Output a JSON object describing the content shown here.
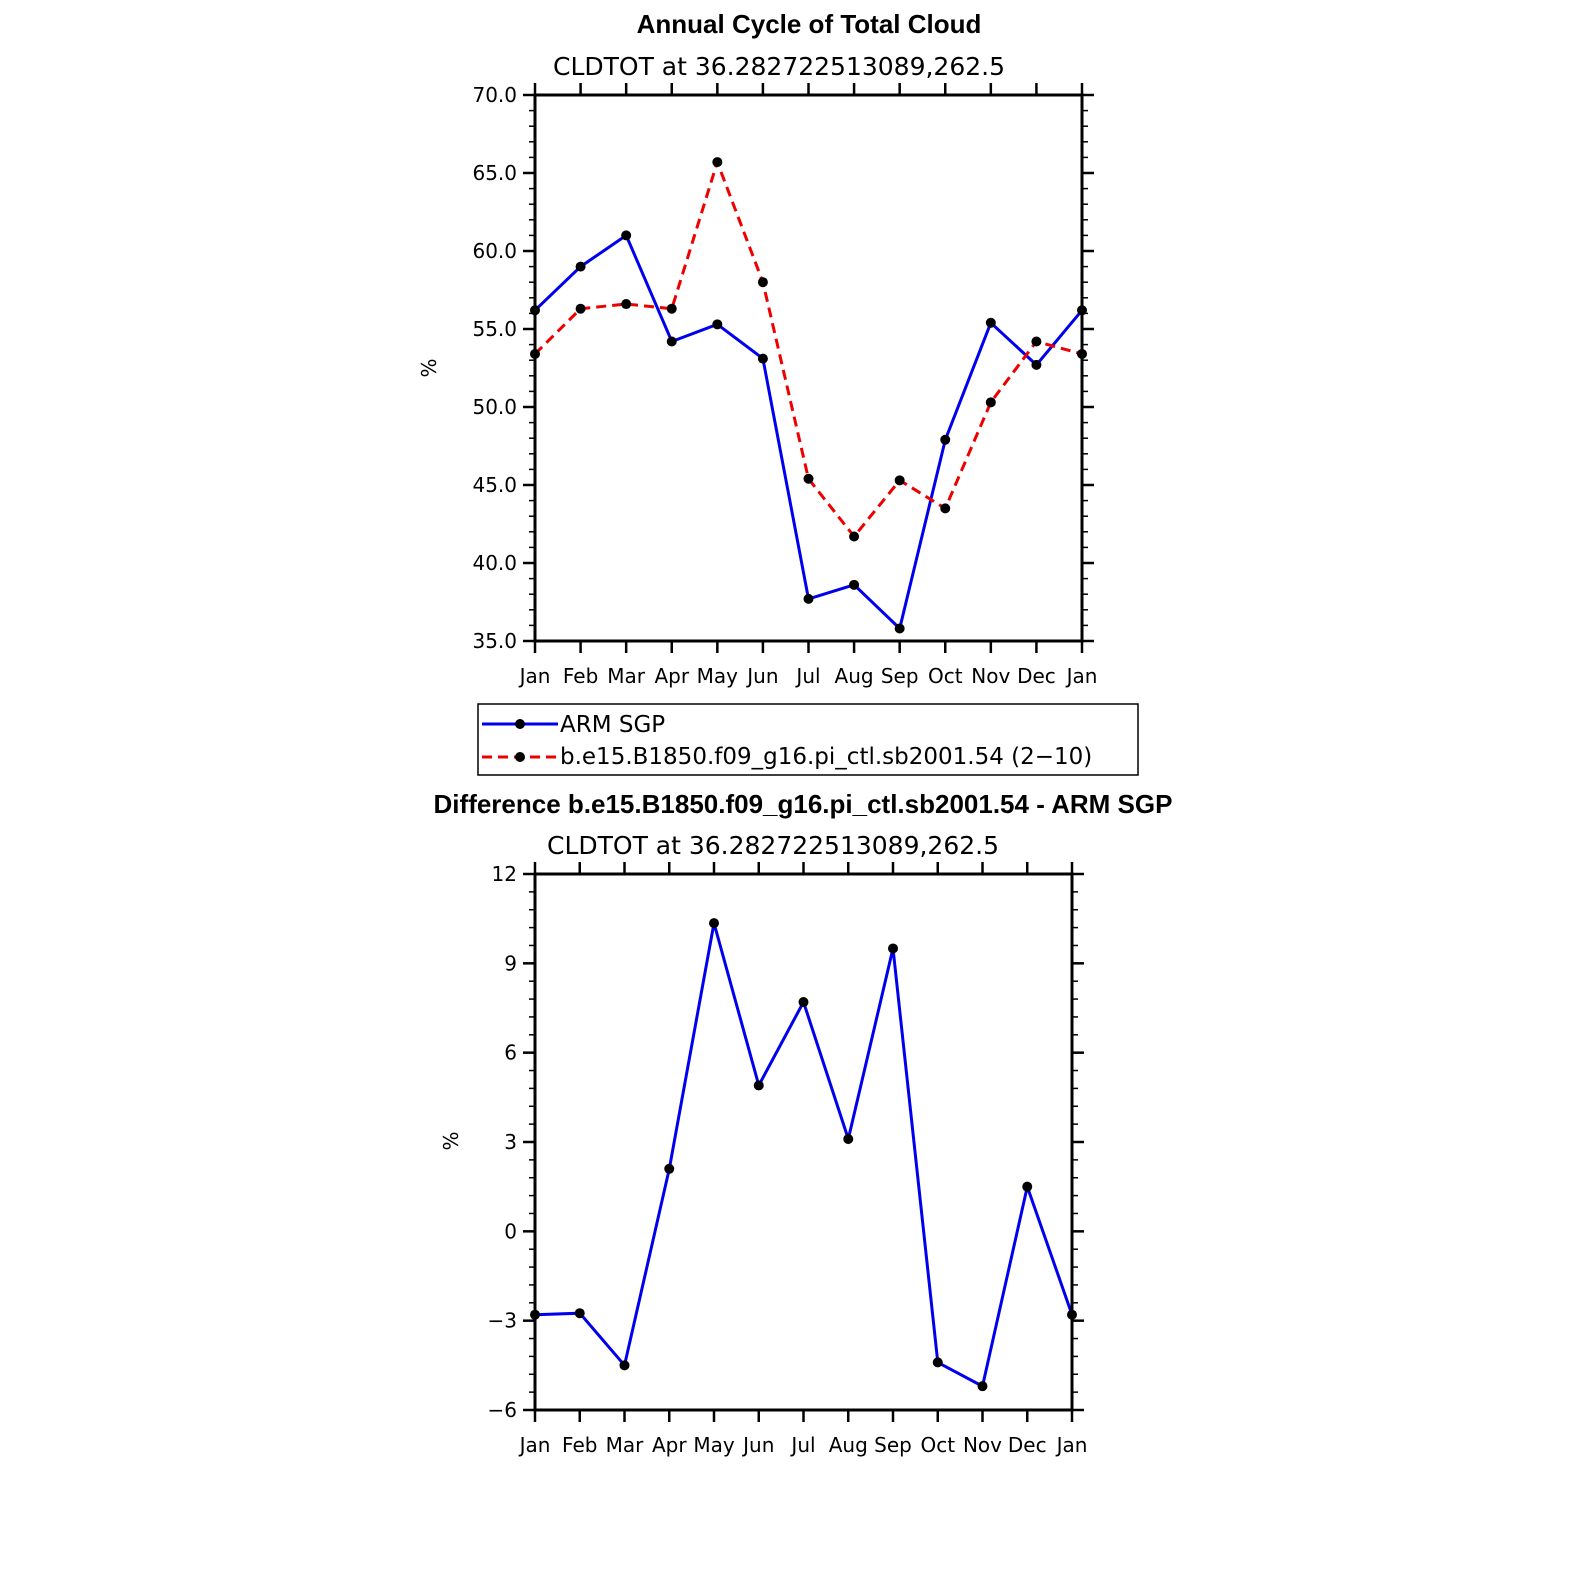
{
  "colors": {
    "obs": "#0000ee",
    "model": "#ee0000",
    "marker": "#000000",
    "axis": "#000000"
  },
  "chart_data": [
    {
      "type": "line",
      "title": "Annual Cycle of Total Cloud",
      "subtitle": "CLDTOT at 36.282722513089,262.5",
      "ylabel": "%",
      "ylim": [
        35.0,
        70.0
      ],
      "yticks": [
        35.0,
        40.0,
        45.0,
        50.0,
        55.0,
        60.0,
        65.0,
        70.0
      ],
      "yticklabels": [
        "35.0",
        "40.0",
        "45.0",
        "50.0",
        "55.0",
        "60.0",
        "65.0",
        "70.0"
      ],
      "categories": [
        "Jan",
        "Feb",
        "Mar",
        "Apr",
        "May",
        "Jun",
        "Jul",
        "Aug",
        "Sep",
        "Oct",
        "Nov",
        "Dec",
        "Jan"
      ],
      "series": [
        {
          "name": "ARM SGP",
          "style": "solid",
          "color": "#0000ee",
          "values": [
            56.2,
            59.0,
            61.0,
            54.2,
            55.3,
            53.1,
            37.7,
            38.6,
            35.8,
            47.9,
            55.4,
            52.7,
            56.2
          ]
        },
        {
          "name": "b.e15.B1850.f09_g16.pi_ctl.sb2001.54 (2−10)",
          "style": "dashed",
          "color": "#ee0000",
          "values": [
            53.4,
            56.3,
            56.6,
            56.3,
            65.7,
            58.0,
            45.4,
            41.7,
            45.3,
            43.5,
            50.3,
            54.2,
            53.4
          ]
        }
      ],
      "legend": {
        "position": "below"
      }
    },
    {
      "type": "line",
      "title": "Difference b.e15.B1850.f09_g16.pi_ctl.sb2001.54 - ARM SGP",
      "subtitle": "CLDTOT at 36.282722513089,262.5",
      "ylabel": "%",
      "ylim": [
        -6,
        12
      ],
      "yticks": [
        -6,
        -3,
        0,
        3,
        6,
        9,
        12
      ],
      "yticklabels": [
        "−6",
        "−3",
        "0",
        "3",
        "6",
        "9",
        "12"
      ],
      "categories": [
        "Jan",
        "Feb",
        "Mar",
        "Apr",
        "May",
        "Jun",
        "Jul",
        "Aug",
        "Sep",
        "Oct",
        "Nov",
        "Dec",
        "Jan"
      ],
      "series": [
        {
          "name": "difference",
          "style": "solid",
          "color": "#0000ee",
          "values": [
            -2.8,
            -2.75,
            -4.5,
            2.1,
            10.35,
            4.9,
            7.7,
            3.1,
            9.5,
            -4.4,
            -5.2,
            1.5,
            -2.8
          ]
        }
      ]
    }
  ]
}
